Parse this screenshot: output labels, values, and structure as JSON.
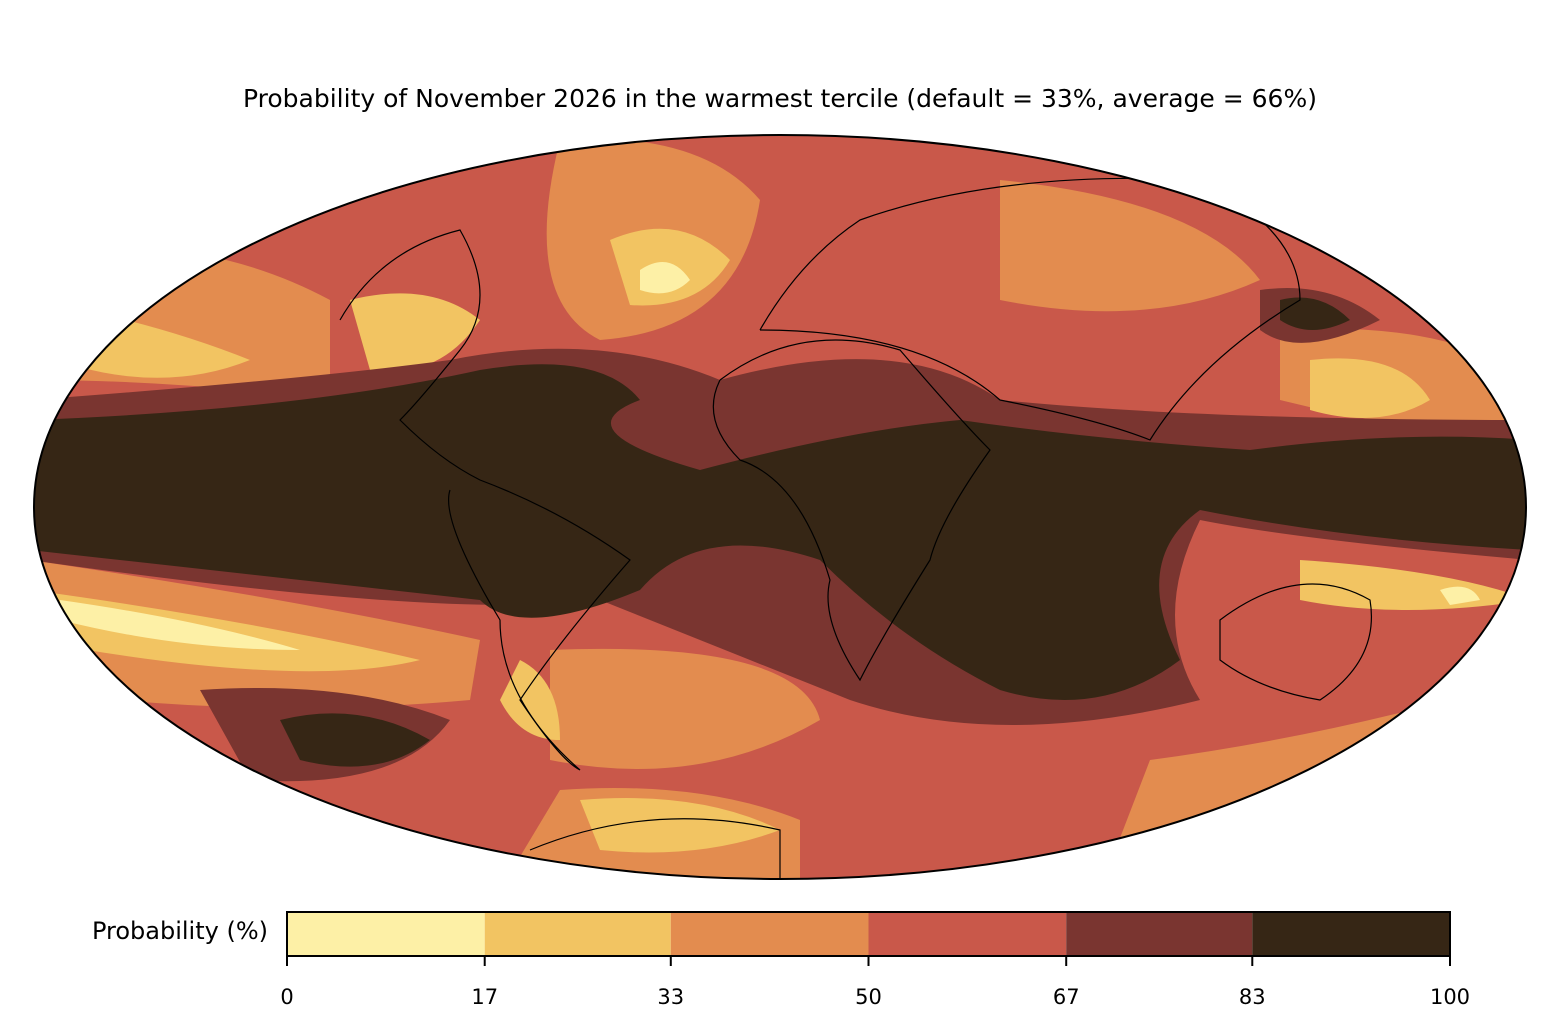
{
  "title": "Probability of November 2026 in the warmest tercile (default = 33%, average = 66%)",
  "colorbar": {
    "label": "Probability (%)",
    "bounds": [
      0,
      17,
      33,
      50,
      67,
      83,
      100
    ],
    "colors": [
      "#fdf0a6",
      "#f2c462",
      "#e38c4f",
      "#c9584a",
      "#7a3530",
      "#362615"
    ]
  }
}
